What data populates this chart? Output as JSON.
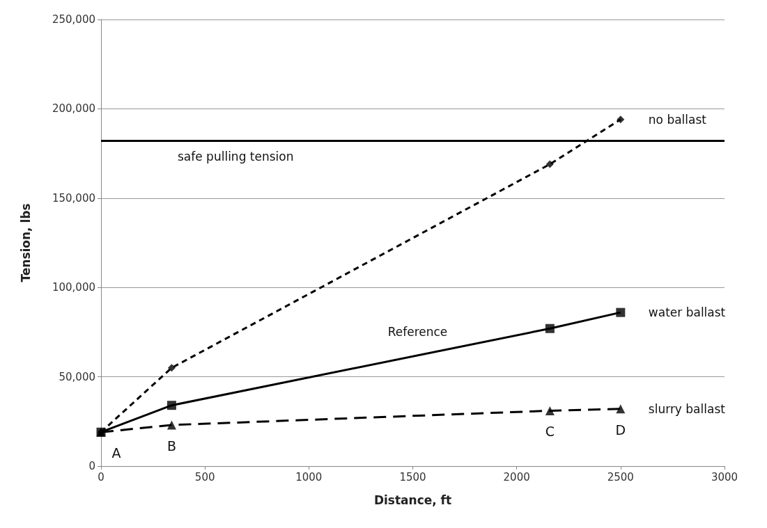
{
  "chart_data": {
    "type": "line",
    "xlabel": "Distance, ft",
    "ylabel": "Tension, lbs",
    "xlim": [
      0,
      3000
    ],
    "xticks": [
      0,
      500,
      1000,
      1500,
      2000,
      2500,
      3000
    ],
    "ylim": [
      0,
      250000
    ],
    "yticks": [
      {
        "value": 0,
        "label": "0"
      },
      {
        "value": 50000,
        "label": "50,000"
      },
      {
        "value": 100000,
        "label": "100,000"
      },
      {
        "value": 150000,
        "label": "150,000"
      },
      {
        "value": 200000,
        "label": "200,000"
      },
      {
        "value": 250000,
        "label": "250,000"
      }
    ],
    "grid": "y",
    "legend": false,
    "series": [
      {
        "name": "no ballast",
        "color": "#000000",
        "x": [
          0,
          340,
          2160,
          2500
        ],
        "values": [
          19000,
          55000,
          169000,
          194000
        ],
        "marker": "diamond",
        "line_style": "dashed"
      },
      {
        "name": "water ballast",
        "color": "#000000",
        "x": [
          0,
          340,
          2160,
          2500
        ],
        "values": [
          19000,
          34000,
          77000,
          86000
        ],
        "marker": "square",
        "line_style": "solid"
      },
      {
        "name": "slurry ballast",
        "color": "#000000",
        "x": [
          0,
          340,
          2160,
          2500
        ],
        "values": [
          19000,
          23000,
          31000,
          32000
        ],
        "marker": "triangle",
        "line_style": "dashed"
      }
    ],
    "ref_lines": [
      {
        "axis": "y",
        "value": 182000,
        "label": "safe pulling tension",
        "color": "#000000",
        "line_style": "solid"
      }
    ],
    "annotations": [
      "Reference",
      {
        "text": "A",
        "x": 0,
        "y": 19000
      },
      {
        "text": "B",
        "x": 340,
        "y": 23000
      },
      {
        "text": "C",
        "x": 2160,
        "y": 31000
      },
      {
        "text": "D",
        "x": 2500,
        "y": 32000
      }
    ]
  }
}
